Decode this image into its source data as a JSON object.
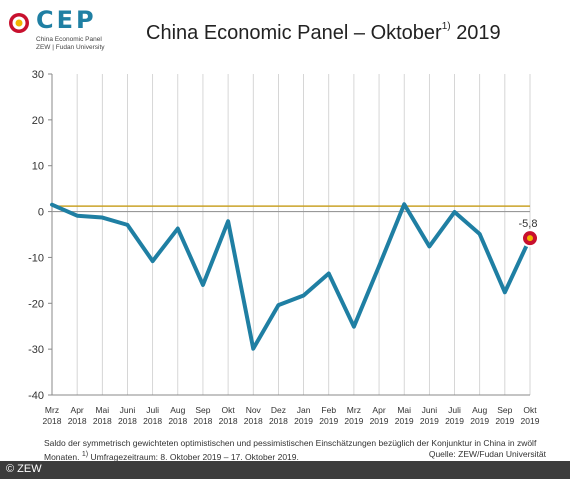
{
  "header": {
    "logo_text": "CEP",
    "logo_sub_1": "China Economic Panel",
    "logo_sub_2": "ZEW | Fudan University",
    "title": "China Economic Panel – Oktober",
    "title_sup": "1)",
    "title_year": "2019"
  },
  "colors": {
    "line": "#1f7fa3",
    "reference_line": "#c9a227",
    "zero_line": "#999999",
    "grid": "#cccccc",
    "marker_outer": "#ffffff",
    "marker_fill": "#c8102e",
    "marker_center": "#f2b400"
  },
  "chart_data": {
    "type": "line",
    "categories": [
      [
        "Mrz",
        "2018"
      ],
      [
        "Apr",
        "2018"
      ],
      [
        "Mai",
        "2018"
      ],
      [
        "Juni",
        "2018"
      ],
      [
        "Juli",
        "2018"
      ],
      [
        "Aug",
        "2018"
      ],
      [
        "Sep",
        "2018"
      ],
      [
        "Okt",
        "2018"
      ],
      [
        "Nov",
        "2018"
      ],
      [
        "Dez",
        "2018"
      ],
      [
        "Jan",
        "2019"
      ],
      [
        "Feb",
        "2019"
      ],
      [
        "Mrz",
        "2019"
      ],
      [
        "Apr",
        "2019"
      ],
      [
        "Mai",
        "2019"
      ],
      [
        "Juni",
        "2019"
      ],
      [
        "Juli",
        "2019"
      ],
      [
        "Aug",
        "2019"
      ],
      [
        "Sep",
        "2019"
      ],
      [
        "Okt",
        "2019"
      ]
    ],
    "series": [
      {
        "values": [
          1.5,
          -0.9,
          -1.3,
          -2.9,
          -10.8,
          -3.7,
          -16.0,
          -2.1,
          -29.9,
          -20.4,
          -18.3,
          -13.5,
          -25.1,
          -11.9,
          1.6,
          -7.6,
          -0.1,
          -4.9,
          -17.6,
          -5.8
        ]
      }
    ],
    "reference_value": 1.2,
    "ylim": [
      -40,
      30
    ],
    "yticks": [
      30,
      20,
      10,
      0,
      -10,
      -20,
      -30,
      -40
    ],
    "grid": "vertical",
    "annotation": {
      "text": "-5,8"
    }
  },
  "footer": {
    "note": "Saldo der symmetrisch gewichteten optimistischen und pessimistischen Einschätzungen bezüglich der Konjunktur in China in zwölf Monaten.",
    "note_sup": "1)",
    "note_2": "Umfragezeitraum: 8. Oktober 2019 – 17. Oktober 2019.",
    "source": "Quelle: ZEW/Fudan Universität",
    "copyright": "© ZEW"
  }
}
